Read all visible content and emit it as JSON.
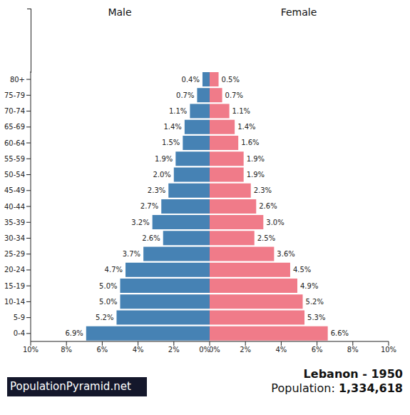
{
  "chart_data": {
    "type": "bar",
    "orientation": "horizontal",
    "title": "Lebanon - 1950",
    "subtitle": "Population: 1,334,618",
    "source": "PopulationPyramid.net",
    "categories": [
      "0-4",
      "5-9",
      "10-14",
      "15-19",
      "20-24",
      "25-29",
      "30-34",
      "35-39",
      "40-44",
      "45-49",
      "50-54",
      "55-59",
      "60-64",
      "65-69",
      "70-74",
      "75-79",
      "80+"
    ],
    "series": [
      {
        "name": "Male",
        "color": "#4682b4",
        "values": [
          6.9,
          5.2,
          5.0,
          5.0,
          4.7,
          3.7,
          2.6,
          3.2,
          2.7,
          2.3,
          2.0,
          1.9,
          1.5,
          1.4,
          1.1,
          0.7,
          0.4
        ],
        "value_labels": [
          "6.9%",
          "5.2%",
          "5.0%",
          "5.0%",
          "4.7%",
          "3.7%",
          "2.6%",
          "3.2%",
          "2.7%",
          "2.3%",
          "2.0%",
          "1.9%",
          "1.5%",
          "1.4%",
          "1.1%",
          "0.7%",
          "0.4%"
        ]
      },
      {
        "name": "Female",
        "color": "#f07b89",
        "values": [
          6.6,
          5.3,
          5.2,
          4.9,
          4.5,
          3.6,
          2.5,
          3.0,
          2.6,
          2.3,
          1.9,
          1.9,
          1.6,
          1.4,
          1.1,
          0.7,
          0.5
        ],
        "value_labels": [
          "6.6%",
          "5.3%",
          "5.2%",
          "4.9%",
          "4.5%",
          "3.6%",
          "2.5%",
          "3.0%",
          "2.6%",
          "2.3%",
          "1.9%",
          "1.9%",
          "1.6%",
          "1.4%",
          "1.1%",
          "0.7%",
          "0.5%"
        ]
      }
    ],
    "xlim": [
      0,
      10
    ],
    "xticks": [
      {
        "value": 0,
        "label": "0%"
      },
      {
        "value": 2,
        "label": "2%"
      },
      {
        "value": 4,
        "label": "4%"
      },
      {
        "value": 6,
        "label": "6%"
      },
      {
        "value": 8,
        "label": "8%"
      },
      {
        "value": 10,
        "label": "10%"
      }
    ],
    "data_labels": true,
    "grid": false
  }
}
